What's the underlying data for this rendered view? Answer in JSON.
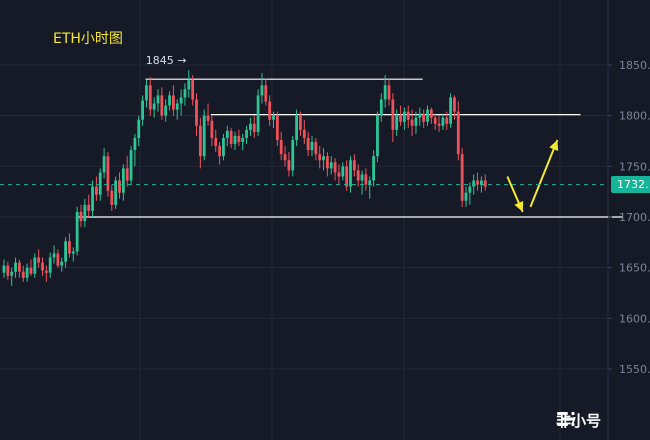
{
  "chart_data": {
    "type": "candlestick",
    "title": "ETH小时图",
    "ylim": [
      1505,
      1890
    ],
    "y_ticks": [
      1850,
      1800,
      1750,
      1700,
      1650,
      1600,
      1550
    ],
    "y_tick_labels": [
      "1850.",
      "1800.",
      "1750.",
      "1700.",
      "1650.",
      "1600.",
      "1550."
    ],
    "current_price": 1732,
    "current_price_label": "1732.",
    "high_label": "1845 →",
    "levels": [
      {
        "price": 1836,
        "from_index": 37,
        "to_index": 109
      },
      {
        "price": 1801,
        "from_index": 54,
        "to_index": 150
      },
      {
        "price": 1700,
        "from_index": 19,
        "to_index": 161
      }
    ],
    "arrows": [
      {
        "from_index": 131,
        "from_price": 1740,
        "to_index": 135,
        "to_price": 1705
      },
      {
        "from_index": 137,
        "from_price": 1710,
        "to_index": 144,
        "to_price": 1776
      }
    ],
    "up_color": "#2bc596",
    "down_color": "#f0525c",
    "candles": [
      {
        "o": 1645,
        "h": 1658,
        "l": 1640,
        "c": 1652
      },
      {
        "o": 1652,
        "h": 1656,
        "l": 1638,
        "c": 1642
      },
      {
        "o": 1642,
        "h": 1650,
        "l": 1632,
        "c": 1646
      },
      {
        "o": 1646,
        "h": 1660,
        "l": 1640,
        "c": 1655
      },
      {
        "o": 1655,
        "h": 1658,
        "l": 1640,
        "c": 1646
      },
      {
        "o": 1646,
        "h": 1652,
        "l": 1636,
        "c": 1640
      },
      {
        "o": 1640,
        "h": 1654,
        "l": 1636,
        "c": 1650
      },
      {
        "o": 1650,
        "h": 1658,
        "l": 1642,
        "c": 1644
      },
      {
        "o": 1644,
        "h": 1664,
        "l": 1640,
        "c": 1660
      },
      {
        "o": 1660,
        "h": 1668,
        "l": 1650,
        "c": 1655
      },
      {
        "o": 1655,
        "h": 1660,
        "l": 1642,
        "c": 1647
      },
      {
        "o": 1647,
        "h": 1652,
        "l": 1636,
        "c": 1645
      },
      {
        "o": 1645,
        "h": 1665,
        "l": 1640,
        "c": 1660
      },
      {
        "o": 1660,
        "h": 1672,
        "l": 1654,
        "c": 1664
      },
      {
        "o": 1664,
        "h": 1668,
        "l": 1650,
        "c": 1652
      },
      {
        "o": 1652,
        "h": 1660,
        "l": 1646,
        "c": 1656
      },
      {
        "o": 1656,
        "h": 1680,
        "l": 1650,
        "c": 1676
      },
      {
        "o": 1676,
        "h": 1684,
        "l": 1660,
        "c": 1664
      },
      {
        "o": 1664,
        "h": 1670,
        "l": 1656,
        "c": 1666
      },
      {
        "o": 1666,
        "h": 1710,
        "l": 1662,
        "c": 1705
      },
      {
        "o": 1705,
        "h": 1712,
        "l": 1690,
        "c": 1696
      },
      {
        "o": 1696,
        "h": 1718,
        "l": 1690,
        "c": 1712
      },
      {
        "o": 1712,
        "h": 1722,
        "l": 1700,
        "c": 1706
      },
      {
        "o": 1706,
        "h": 1736,
        "l": 1700,
        "c": 1730
      },
      {
        "o": 1730,
        "h": 1740,
        "l": 1716,
        "c": 1722
      },
      {
        "o": 1722,
        "h": 1748,
        "l": 1716,
        "c": 1744
      },
      {
        "o": 1744,
        "h": 1768,
        "l": 1738,
        "c": 1760
      },
      {
        "o": 1760,
        "h": 1764,
        "l": 1720,
        "c": 1726
      },
      {
        "o": 1726,
        "h": 1732,
        "l": 1706,
        "c": 1712
      },
      {
        "o": 1712,
        "h": 1740,
        "l": 1708,
        "c": 1736
      },
      {
        "o": 1736,
        "h": 1744,
        "l": 1718,
        "c": 1724
      },
      {
        "o": 1724,
        "h": 1752,
        "l": 1716,
        "c": 1748
      },
      {
        "o": 1748,
        "h": 1760,
        "l": 1730,
        "c": 1736
      },
      {
        "o": 1736,
        "h": 1770,
        "l": 1732,
        "c": 1766
      },
      {
        "o": 1766,
        "h": 1782,
        "l": 1750,
        "c": 1778
      },
      {
        "o": 1778,
        "h": 1800,
        "l": 1770,
        "c": 1796
      },
      {
        "o": 1796,
        "h": 1820,
        "l": 1790,
        "c": 1815
      },
      {
        "o": 1815,
        "h": 1836,
        "l": 1808,
        "c": 1830
      },
      {
        "o": 1830,
        "h": 1838,
        "l": 1800,
        "c": 1806
      },
      {
        "o": 1806,
        "h": 1818,
        "l": 1798,
        "c": 1812
      },
      {
        "o": 1812,
        "h": 1826,
        "l": 1804,
        "c": 1820
      },
      {
        "o": 1820,
        "h": 1828,
        "l": 1796,
        "c": 1800
      },
      {
        "o": 1800,
        "h": 1816,
        "l": 1794,
        "c": 1810
      },
      {
        "o": 1810,
        "h": 1824,
        "l": 1805,
        "c": 1820
      },
      {
        "o": 1820,
        "h": 1830,
        "l": 1800,
        "c": 1806
      },
      {
        "o": 1806,
        "h": 1816,
        "l": 1796,
        "c": 1812
      },
      {
        "o": 1812,
        "h": 1826,
        "l": 1800,
        "c": 1818
      },
      {
        "o": 1818,
        "h": 1832,
        "l": 1810,
        "c": 1826
      },
      {
        "o": 1826,
        "h": 1845,
        "l": 1818,
        "c": 1835
      },
      {
        "o": 1835,
        "h": 1840,
        "l": 1810,
        "c": 1816
      },
      {
        "o": 1816,
        "h": 1822,
        "l": 1780,
        "c": 1790
      },
      {
        "o": 1790,
        "h": 1798,
        "l": 1748,
        "c": 1760
      },
      {
        "o": 1760,
        "h": 1806,
        "l": 1756,
        "c": 1800
      },
      {
        "o": 1800,
        "h": 1812,
        "l": 1790,
        "c": 1795
      },
      {
        "o": 1795,
        "h": 1800,
        "l": 1770,
        "c": 1778
      },
      {
        "o": 1778,
        "h": 1786,
        "l": 1764,
        "c": 1770
      },
      {
        "o": 1770,
        "h": 1774,
        "l": 1752,
        "c": 1760
      },
      {
        "o": 1760,
        "h": 1782,
        "l": 1756,
        "c": 1778
      },
      {
        "o": 1778,
        "h": 1790,
        "l": 1770,
        "c": 1785
      },
      {
        "o": 1785,
        "h": 1788,
        "l": 1768,
        "c": 1772
      },
      {
        "o": 1772,
        "h": 1784,
        "l": 1766,
        "c": 1780
      },
      {
        "o": 1780,
        "h": 1786,
        "l": 1770,
        "c": 1774
      },
      {
        "o": 1774,
        "h": 1782,
        "l": 1766,
        "c": 1778
      },
      {
        "o": 1778,
        "h": 1790,
        "l": 1772,
        "c": 1786
      },
      {
        "o": 1786,
        "h": 1798,
        "l": 1780,
        "c": 1792
      },
      {
        "o": 1792,
        "h": 1800,
        "l": 1778,
        "c": 1784
      },
      {
        "o": 1784,
        "h": 1826,
        "l": 1780,
        "c": 1820
      },
      {
        "o": 1820,
        "h": 1842,
        "l": 1812,
        "c": 1830
      },
      {
        "o": 1830,
        "h": 1836,
        "l": 1810,
        "c": 1814
      },
      {
        "o": 1814,
        "h": 1820,
        "l": 1790,
        "c": 1796
      },
      {
        "o": 1796,
        "h": 1804,
        "l": 1788,
        "c": 1800
      },
      {
        "o": 1800,
        "h": 1804,
        "l": 1770,
        "c": 1776
      },
      {
        "o": 1776,
        "h": 1784,
        "l": 1756,
        "c": 1762
      },
      {
        "o": 1762,
        "h": 1770,
        "l": 1750,
        "c": 1756
      },
      {
        "o": 1756,
        "h": 1764,
        "l": 1740,
        "c": 1746
      },
      {
        "o": 1746,
        "h": 1780,
        "l": 1740,
        "c": 1776
      },
      {
        "o": 1776,
        "h": 1806,
        "l": 1770,
        "c": 1800
      },
      {
        "o": 1800,
        "h": 1804,
        "l": 1780,
        "c": 1786
      },
      {
        "o": 1786,
        "h": 1796,
        "l": 1772,
        "c": 1778
      },
      {
        "o": 1778,
        "h": 1784,
        "l": 1760,
        "c": 1766
      },
      {
        "o": 1766,
        "h": 1780,
        "l": 1760,
        "c": 1774
      },
      {
        "o": 1774,
        "h": 1778,
        "l": 1756,
        "c": 1762
      },
      {
        "o": 1762,
        "h": 1770,
        "l": 1748,
        "c": 1756
      },
      {
        "o": 1756,
        "h": 1768,
        "l": 1746,
        "c": 1760
      },
      {
        "o": 1760,
        "h": 1764,
        "l": 1740,
        "c": 1748
      },
      {
        "o": 1748,
        "h": 1760,
        "l": 1742,
        "c": 1754
      },
      {
        "o": 1754,
        "h": 1758,
        "l": 1736,
        "c": 1744
      },
      {
        "o": 1744,
        "h": 1752,
        "l": 1732,
        "c": 1740
      },
      {
        "o": 1740,
        "h": 1754,
        "l": 1736,
        "c": 1750
      },
      {
        "o": 1750,
        "h": 1756,
        "l": 1726,
        "c": 1730
      },
      {
        "o": 1730,
        "h": 1760,
        "l": 1724,
        "c": 1756
      },
      {
        "o": 1756,
        "h": 1762,
        "l": 1740,
        "c": 1746
      },
      {
        "o": 1746,
        "h": 1752,
        "l": 1730,
        "c": 1736
      },
      {
        "o": 1736,
        "h": 1746,
        "l": 1722,
        "c": 1742
      },
      {
        "o": 1742,
        "h": 1748,
        "l": 1726,
        "c": 1732
      },
      {
        "o": 1732,
        "h": 1740,
        "l": 1718,
        "c": 1736
      },
      {
        "o": 1736,
        "h": 1766,
        "l": 1730,
        "c": 1760
      },
      {
        "o": 1760,
        "h": 1804,
        "l": 1754,
        "c": 1800
      },
      {
        "o": 1800,
        "h": 1822,
        "l": 1794,
        "c": 1816
      },
      {
        "o": 1816,
        "h": 1840,
        "l": 1808,
        "c": 1830
      },
      {
        "o": 1830,
        "h": 1836,
        "l": 1810,
        "c": 1816
      },
      {
        "o": 1816,
        "h": 1822,
        "l": 1774,
        "c": 1786
      },
      {
        "o": 1786,
        "h": 1806,
        "l": 1780,
        "c": 1800
      },
      {
        "o": 1800,
        "h": 1810,
        "l": 1790,
        "c": 1794
      },
      {
        "o": 1794,
        "h": 1808,
        "l": 1786,
        "c": 1804
      },
      {
        "o": 1804,
        "h": 1810,
        "l": 1788,
        "c": 1796
      },
      {
        "o": 1796,
        "h": 1806,
        "l": 1780,
        "c": 1790
      },
      {
        "o": 1790,
        "h": 1804,
        "l": 1782,
        "c": 1798
      },
      {
        "o": 1798,
        "h": 1808,
        "l": 1790,
        "c": 1802
      },
      {
        "o": 1802,
        "h": 1806,
        "l": 1788,
        "c": 1794
      },
      {
        "o": 1794,
        "h": 1810,
        "l": 1790,
        "c": 1806
      },
      {
        "o": 1806,
        "h": 1808,
        "l": 1792,
        "c": 1798
      },
      {
        "o": 1798,
        "h": 1802,
        "l": 1786,
        "c": 1792
      },
      {
        "o": 1792,
        "h": 1800,
        "l": 1784,
        "c": 1790
      },
      {
        "o": 1790,
        "h": 1802,
        "l": 1786,
        "c": 1798
      },
      {
        "o": 1798,
        "h": 1804,
        "l": 1786,
        "c": 1792
      },
      {
        "o": 1792,
        "h": 1822,
        "l": 1788,
        "c": 1818
      },
      {
        "o": 1818,
        "h": 1820,
        "l": 1796,
        "c": 1804
      },
      {
        "o": 1804,
        "h": 1814,
        "l": 1756,
        "c": 1762
      },
      {
        "o": 1762,
        "h": 1768,
        "l": 1710,
        "c": 1716
      },
      {
        "o": 1716,
        "h": 1730,
        "l": 1710,
        "c": 1724
      },
      {
        "o": 1724,
        "h": 1734,
        "l": 1712,
        "c": 1730
      },
      {
        "o": 1730,
        "h": 1742,
        "l": 1722,
        "c": 1736
      },
      {
        "o": 1736,
        "h": 1744,
        "l": 1726,
        "c": 1732
      },
      {
        "o": 1732,
        "h": 1740,
        "l": 1724,
        "c": 1736
      },
      {
        "o": 1736,
        "h": 1742,
        "l": 1726,
        "c": 1730
      }
    ]
  },
  "watermark": {
    "logo_icon": "feixiaohao-logo-icon",
    "text": "非小号"
  }
}
